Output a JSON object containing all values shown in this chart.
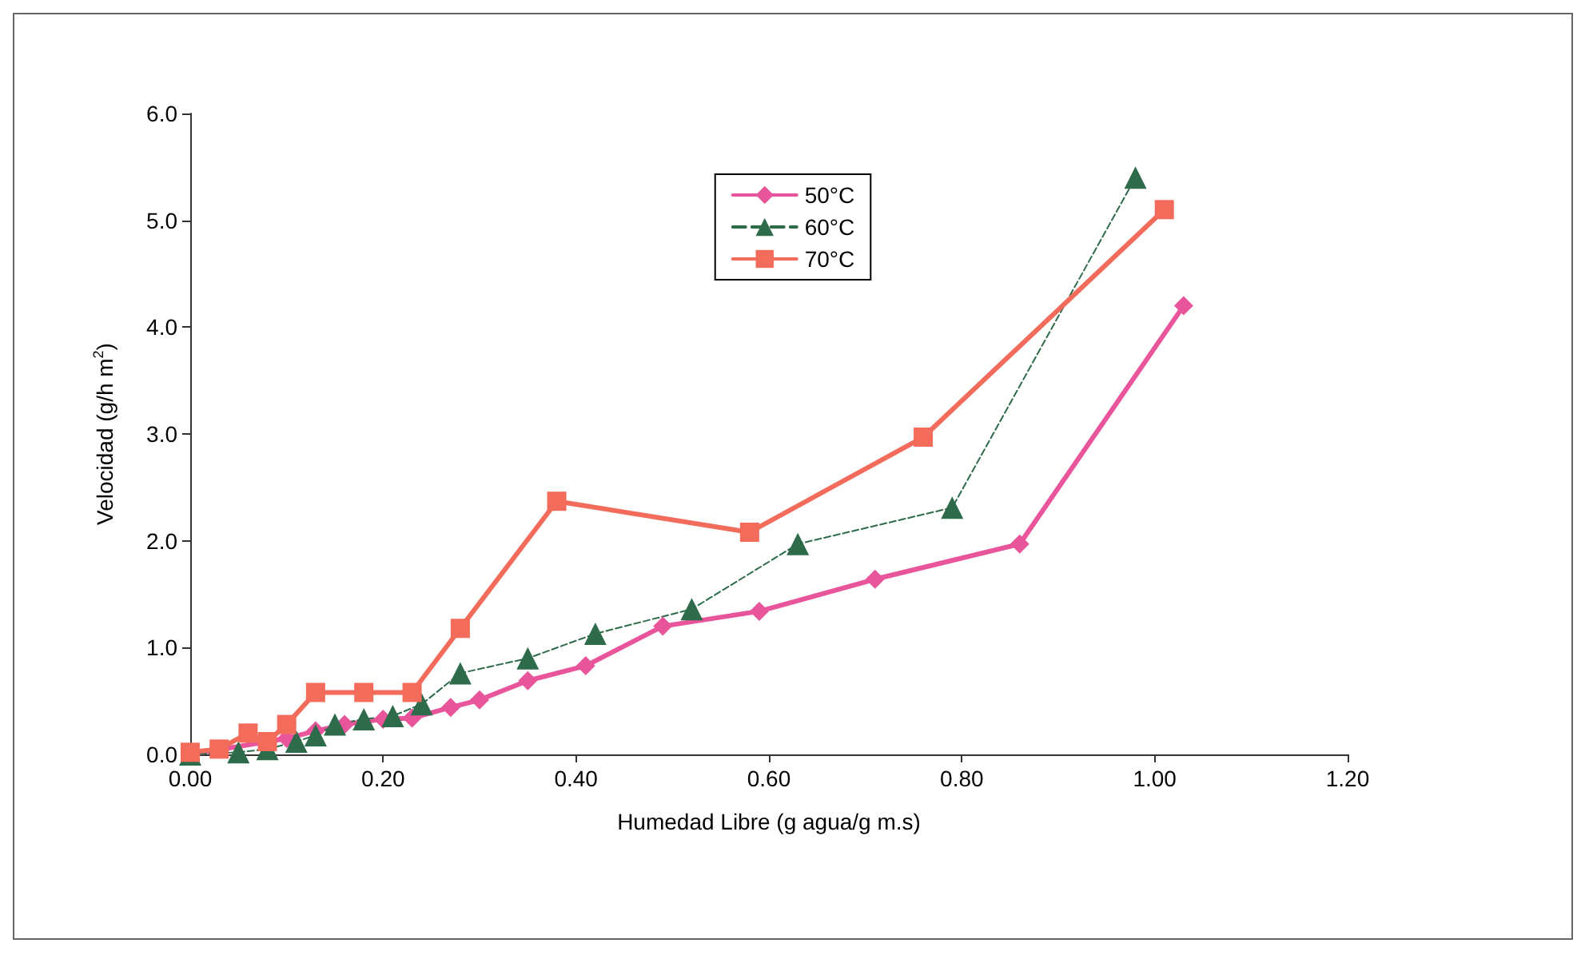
{
  "chart_data": {
    "type": "line",
    "xlabel": "Humedad Libre (g agua/g m.s)",
    "ylabel": "Velocidad (g/h m$^{2}$)",
    "xlim": [
      0,
      1.2
    ],
    "xticks": [
      {
        "value": 0,
        "label": "0.00"
      },
      {
        "value": 0.2,
        "label": "0.20"
      },
      {
        "value": 0.4,
        "label": "0.40"
      },
      {
        "value": 0.6,
        "label": "0.60"
      },
      {
        "value": 0.8,
        "label": "0.80"
      },
      {
        "value": 1.0,
        "label": "1.00"
      },
      {
        "value": 1.2,
        "label": "1.20"
      }
    ],
    "ylim": [
      0,
      6
    ],
    "yticks": [
      {
        "value": 0,
        "label": "0.0"
      },
      {
        "value": 1,
        "label": "1.0"
      },
      {
        "value": 2,
        "label": "2.0"
      },
      {
        "value": 3,
        "label": "3.0"
      },
      {
        "value": 4,
        "label": "4.0"
      },
      {
        "value": 5,
        "label": "5.0"
      },
      {
        "value": 6,
        "label": "6.0"
      }
    ],
    "grid": false,
    "legend": "top",
    "series": [
      {
        "name": "50°C",
        "color": "#e8559b",
        "marker": "diamond",
        "line_style": "solid",
        "x": [
          0.0,
          0.1,
          0.13,
          0.16,
          0.2,
          0.23,
          0.27,
          0.3,
          0.35,
          0.41,
          0.49,
          0.59,
          0.71,
          0.86,
          1.03
        ],
        "values": [
          0.0,
          0.15,
          0.22,
          0.28,
          0.33,
          0.34,
          0.44,
          0.51,
          0.69,
          0.83,
          1.2,
          1.34,
          1.64,
          1.97,
          4.2
        ]
      },
      {
        "name": "60°C",
        "color": "#2e6b4a",
        "marker": "triangle",
        "line_style": "dashed",
        "x": [
          0.0,
          0.05,
          0.08,
          0.11,
          0.13,
          0.15,
          0.18,
          0.21,
          0.24,
          0.28,
          0.35,
          0.42,
          0.52,
          0.63,
          0.79,
          0.98
        ],
        "values": [
          0.0,
          0.02,
          0.05,
          0.12,
          0.18,
          0.28,
          0.33,
          0.36,
          0.47,
          0.76,
          0.9,
          1.13,
          1.36,
          1.97,
          2.31,
          5.4
        ]
      },
      {
        "name": "70°C",
        "color": "#f26b5b",
        "marker": "square",
        "line_style": "solid",
        "x": [
          0.0,
          0.03,
          0.06,
          0.08,
          0.1,
          0.13,
          0.18,
          0.23,
          0.28,
          0.38,
          0.58,
          0.76,
          1.01
        ],
        "values": [
          0.02,
          0.05,
          0.2,
          0.12,
          0.28,
          0.58,
          0.58,
          0.58,
          1.18,
          2.37,
          2.08,
          2.97,
          5.1
        ]
      }
    ]
  }
}
